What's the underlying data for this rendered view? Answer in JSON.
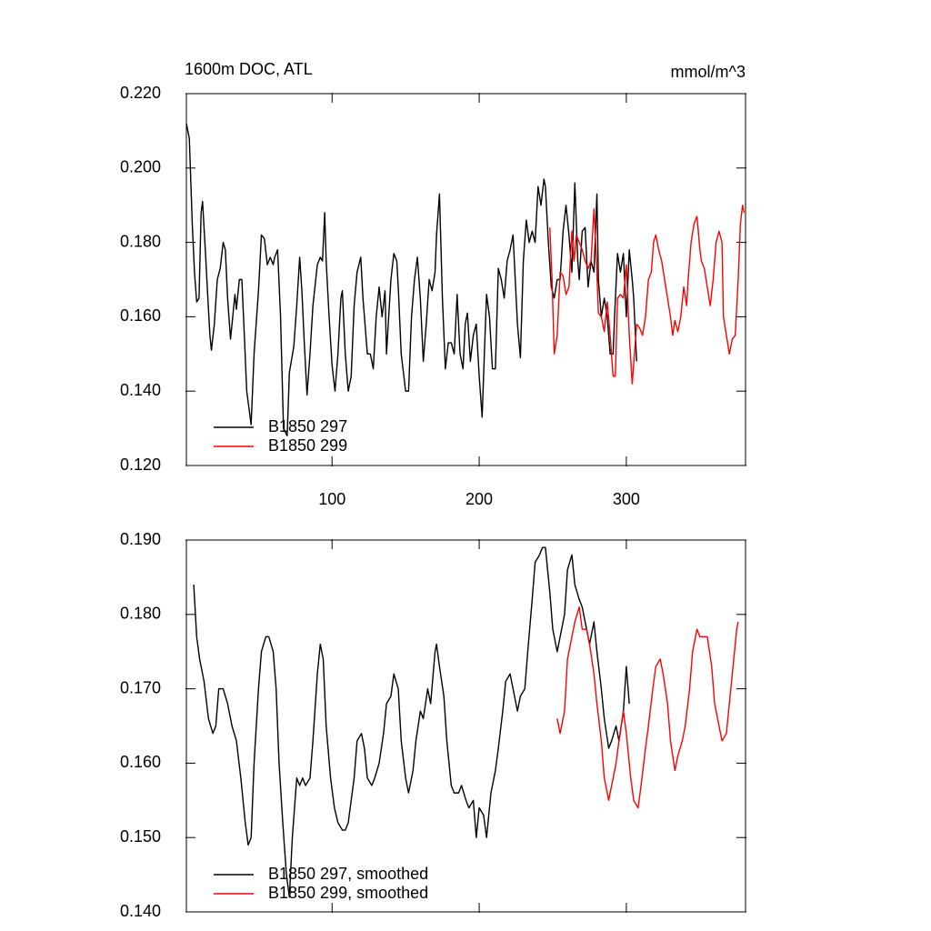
{
  "chart_data": [
    {
      "type": "line",
      "title": "1600m DOC, ATL",
      "units": "mmol/m^3",
      "xlim": [
        1,
        381
      ],
      "xticks": [
        100,
        200,
        300
      ],
      "ylim": [
        0.12,
        0.22
      ],
      "yticks": [
        {
          "value": 0.12,
          "label": "0.120"
        },
        {
          "value": 0.14,
          "label": "0.140"
        },
        {
          "value": 0.16,
          "label": "0.160"
        },
        {
          "value": 0.18,
          "label": "0.180"
        },
        {
          "value": 0.2,
          "label": "0.200"
        },
        {
          "value": 0.22,
          "label": "0.220"
        }
      ],
      "series": [
        {
          "name": "B1850 297",
          "color": "#000000",
          "x": [
            1,
            3,
            5,
            6.5,
            8,
            9.6,
            11,
            12,
            14,
            16,
            17,
            18,
            20,
            22,
            24,
            26,
            27.5,
            29,
            31,
            34,
            35,
            37,
            38.7,
            40.5,
            42,
            45,
            47,
            50,
            52,
            54,
            56,
            58,
            60,
            61,
            63,
            65,
            67,
            69.5,
            71,
            74,
            76,
            78,
            79.5,
            81,
            83,
            85,
            87,
            90,
            92,
            93.5,
            95,
            96,
            98,
            100,
            102,
            104,
            106,
            107,
            109,
            111,
            113,
            115,
            117,
            119.5,
            121,
            124,
            126,
            128,
            130,
            132,
            134,
            136,
            137,
            140,
            142,
            144,
            145,
            147,
            150,
            152,
            154,
            156,
            158,
            160,
            162,
            164,
            166,
            168,
            170,
            171,
            173,
            175,
            177,
            179,
            181,
            183,
            185,
            187,
            189,
            190.5,
            192,
            194,
            196,
            198,
            200,
            202,
            203.5,
            205,
            207,
            209,
            211,
            213,
            215,
            217,
            219,
            221,
            223,
            224.5,
            226,
            228,
            230,
            232,
            234,
            236,
            238,
            240,
            242,
            244,
            245,
            247,
            249,
            251,
            253,
            255,
            257,
            259,
            261,
            263,
            265,
            267,
            268,
            270,
            272,
            274,
            276,
            278,
            280,
            281,
            283,
            285,
            287,
            289,
            291,
            292,
            294,
            296,
            298,
            300,
            302,
            304,
            305,
            307
          ],
          "values": [
            0.212,
            0.208,
            0.185,
            0.172,
            0.164,
            0.165,
            0.188,
            0.191,
            0.177,
            0.162,
            0.155,
            0.151,
            0.158,
            0.17,
            0.173,
            0.18,
            0.178,
            0.165,
            0.154,
            0.166,
            0.162,
            0.17,
            0.17,
            0.154,
            0.14,
            0.131,
            0.15,
            0.167,
            0.182,
            0.181,
            0.174,
            0.176,
            0.174,
            0.176,
            0.178,
            0.16,
            0.13,
            0.128,
            0.145,
            0.152,
            0.163,
            0.176,
            0.167,
            0.154,
            0.139,
            0.15,
            0.163,
            0.174,
            0.176,
            0.175,
            0.188,
            0.175,
            0.16,
            0.147,
            0.14,
            0.15,
            0.165,
            0.167,
            0.15,
            0.14,
            0.144,
            0.163,
            0.172,
            0.176,
            0.165,
            0.15,
            0.15,
            0.146,
            0.16,
            0.168,
            0.16,
            0.167,
            0.15,
            0.17,
            0.177,
            0.175,
            0.168,
            0.15,
            0.14,
            0.14,
            0.16,
            0.17,
            0.176,
            0.165,
            0.148,
            0.158,
            0.17,
            0.167,
            0.172,
            0.182,
            0.193,
            0.165,
            0.146,
            0.153,
            0.153,
            0.15,
            0.166,
            0.15,
            0.146,
            0.158,
            0.161,
            0.148,
            0.155,
            0.158,
            0.144,
            0.133,
            0.15,
            0.166,
            0.16,
            0.146,
            0.146,
            0.173,
            0.17,
            0.165,
            0.175,
            0.178,
            0.182,
            0.17,
            0.158,
            0.149,
            0.175,
            0.186,
            0.18,
            0.183,
            0.18,
            0.195,
            0.19,
            0.197,
            0.195,
            0.18,
            0.168,
            0.165,
            0.17,
            0.17,
            0.183,
            0.19,
            0.182,
            0.172,
            0.196,
            0.175,
            0.17,
            0.183,
            0.184,
            0.168,
            0.175,
            0.172,
            0.193,
            0.17,
            0.16,
            0.165,
            0.16,
            0.15,
            0.15,
            0.16,
            0.177,
            0.172,
            0.177,
            0.16,
            0.178,
            0.17,
            0.165,
            0.148
          ]
        },
        {
          "name": "B1850 299",
          "color": "#ff0000",
          "x": [
            248,
            249.5,
            251,
            253,
            255,
            257,
            259,
            261,
            263,
            264.5,
            266,
            268,
            270,
            272,
            274,
            276,
            278,
            279.5,
            281,
            283,
            285,
            287,
            289,
            291,
            292.5,
            294,
            296,
            298,
            300,
            302,
            304,
            305.5,
            307,
            309,
            311,
            313,
            315,
            317,
            318.5,
            320,
            322,
            324,
            326,
            328,
            330,
            331.5,
            333,
            335,
            337,
            339,
            341,
            342,
            344,
            346,
            348,
            350,
            351,
            353,
            355,
            357,
            359,
            361,
            363,
            365,
            366,
            368,
            370,
            372,
            374,
            376,
            377.5,
            379,
            380
          ],
          "values": [
            0.184,
            0.17,
            0.15,
            0.155,
            0.172,
            0.171,
            0.166,
            0.168,
            0.183,
            0.175,
            0.182,
            0.18,
            0.178,
            0.175,
            0.173,
            0.175,
            0.189,
            0.177,
            0.161,
            0.16,
            0.156,
            0.164,
            0.155,
            0.144,
            0.144,
            0.165,
            0.166,
            0.165,
            0.174,
            0.155,
            0.142,
            0.15,
            0.158,
            0.157,
            0.155,
            0.16,
            0.17,
            0.172,
            0.18,
            0.182,
            0.178,
            0.175,
            0.17,
            0.165,
            0.16,
            0.155,
            0.159,
            0.156,
            0.16,
            0.168,
            0.163,
            0.17,
            0.18,
            0.185,
            0.187,
            0.178,
            0.175,
            0.173,
            0.168,
            0.163,
            0.17,
            0.18,
            0.183,
            0.18,
            0.16,
            0.155,
            0.15,
            0.154,
            0.155,
            0.17,
            0.185,
            0.19,
            0.188
          ]
        }
      ]
    },
    {
      "type": "line",
      "xlim": [
        1,
        381
      ],
      "ylim": [
        0.14,
        0.19
      ],
      "yticks": [
        {
          "value": 0.14,
          "label": "0.140"
        },
        {
          "value": 0.15,
          "label": "0.150"
        },
        {
          "value": 0.16,
          "label": "0.160"
        },
        {
          "value": 0.17,
          "label": "0.170"
        },
        {
          "value": 0.18,
          "label": "0.180"
        },
        {
          "value": 0.19,
          "label": "0.190"
        }
      ],
      "series": [
        {
          "name": "B1850 297, smoothed",
          "color": "#000000",
          "x": [
            6,
            8,
            10,
            13,
            16,
            19,
            21,
            23,
            26,
            29,
            32,
            35,
            38,
            41,
            43,
            45,
            47,
            50,
            52,
            55,
            57,
            60,
            62,
            64,
            66.5,
            69,
            71,
            73,
            76,
            78,
            80,
            82,
            85,
            87,
            90,
            92,
            94,
            96,
            99,
            101.6,
            104,
            107,
            109,
            111,
            115,
            117,
            120,
            122,
            124,
            127,
            129,
            132,
            135,
            137,
            140,
            142,
            145,
            147,
            150,
            152,
            155,
            157,
            160,
            162,
            165,
            167,
            170,
            171,
            173,
            176,
            178,
            181,
            183,
            186,
            188,
            191,
            193,
            196,
            198,
            200,
            203,
            205,
            208,
            211,
            213,
            216,
            218,
            221,
            223,
            226,
            228,
            231,
            233,
            236,
            238,
            241,
            243,
            245,
            248,
            250,
            253,
            255,
            258,
            260,
            263,
            265,
            268,
            270,
            273,
            275,
            278,
            280,
            283,
            285,
            288,
            290,
            293,
            295,
            298,
            300,
            302
          ],
          "values": [
            0.184,
            0.177,
            0.174,
            0.171,
            0.166,
            0.164,
            0.165,
            0.17,
            0.17,
            0.168,
            0.165,
            0.163,
            0.158,
            0.152,
            0.149,
            0.15,
            0.16,
            0.17,
            0.175,
            0.177,
            0.177,
            0.175,
            0.17,
            0.16,
            0.152,
            0.145,
            0.142,
            0.15,
            0.158,
            0.157,
            0.158,
            0.157,
            0.158,
            0.163,
            0.172,
            0.176,
            0.174,
            0.165,
            0.158,
            0.154,
            0.152,
            0.151,
            0.151,
            0.152,
            0.158,
            0.163,
            0.164,
            0.162,
            0.158,
            0.157,
            0.158,
            0.16,
            0.164,
            0.168,
            0.169,
            0.172,
            0.17,
            0.163,
            0.158,
            0.156,
            0.159,
            0.163,
            0.167,
            0.166,
            0.17,
            0.168,
            0.175,
            0.176,
            0.173,
            0.169,
            0.163,
            0.157,
            0.156,
            0.156,
            0.157,
            0.155,
            0.154,
            0.155,
            0.15,
            0.154,
            0.153,
            0.15,
            0.156,
            0.159,
            0.162,
            0.167,
            0.171,
            0.172,
            0.17,
            0.167,
            0.169,
            0.17,
            0.175,
            0.182,
            0.187,
            0.188,
            0.189,
            0.189,
            0.183,
            0.178,
            0.175,
            0.177,
            0.18,
            0.186,
            0.188,
            0.184,
            0.182,
            0.181,
            0.178,
            0.176,
            0.179,
            0.175,
            0.17,
            0.166,
            0.162,
            0.163,
            0.165,
            0.163,
            0.167,
            0.173,
            0.168
          ]
        },
        {
          "name": "B1850 299, smoothed",
          "color": "#ff0000",
          "x": [
            253,
            255,
            258,
            260,
            263,
            265,
            268,
            270,
            273,
            275,
            278,
            280,
            283,
            285,
            288,
            290,
            293,
            295,
            298,
            300,
            303,
            305,
            308,
            310,
            313,
            315,
            318,
            320,
            323,
            325,
            328,
            330,
            333,
            335,
            338,
            340,
            343,
            345,
            348,
            350,
            353,
            355,
            358,
            360,
            363,
            365,
            368,
            370,
            373,
            375,
            376
          ],
          "values": [
            0.166,
            0.164,
            0.167,
            0.174,
            0.177,
            0.179,
            0.181,
            0.178,
            0.178,
            0.176,
            0.172,
            0.168,
            0.163,
            0.158,
            0.155,
            0.157,
            0.16,
            0.163,
            0.167,
            0.164,
            0.158,
            0.155,
            0.154,
            0.157,
            0.162,
            0.165,
            0.17,
            0.173,
            0.174,
            0.172,
            0.168,
            0.163,
            0.159,
            0.161,
            0.163,
            0.165,
            0.17,
            0.175,
            0.178,
            0.177,
            0.177,
            0.177,
            0.173,
            0.168,
            0.165,
            0.163,
            0.164,
            0.168,
            0.174,
            0.178,
            0.179
          ]
        }
      ]
    }
  ]
}
